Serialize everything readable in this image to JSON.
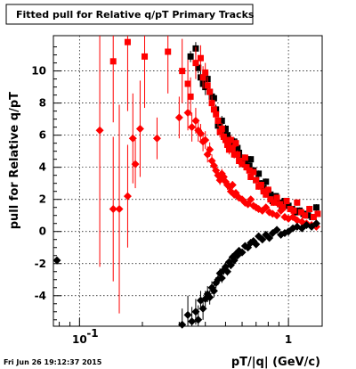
{
  "chart_data": {
    "type": "scatter",
    "title": "Fitted pull for Relative q/pT  Primary Tracks",
    "xlabel": "pT/|q| (GeV/c)",
    "ylabel": "pull for Relative q/pT",
    "x_scale": "log",
    "xlim": [
      0.075,
      1.45
    ],
    "ylim": [
      -5.9,
      12.2
    ],
    "x_ticks": [
      {
        "value": 0.1,
        "label": "10",
        "exp": "-1"
      },
      {
        "value": 1,
        "label": "1",
        "exp": ""
      }
    ],
    "y_ticks": [
      {
        "value": -4,
        "label": "-4"
      },
      {
        "value": -2,
        "label": "-2"
      },
      {
        "value": 0,
        "label": "0"
      },
      {
        "value": 2,
        "label": "2"
      },
      {
        "value": 4,
        "label": "4"
      },
      {
        "value": 6,
        "label": "6"
      },
      {
        "value": 8,
        "label": "8"
      },
      {
        "value": 10,
        "label": "10"
      }
    ],
    "grid": true,
    "series": [
      {
        "color": "#000000",
        "marker": "square",
        "points": [
          [
            0.34,
            10.9
          ],
          [
            0.36,
            11.4
          ],
          [
            0.37,
            10.2
          ],
          [
            0.38,
            9.6
          ],
          [
            0.39,
            9.2
          ],
          [
            0.4,
            9.0
          ],
          [
            0.41,
            9.5
          ],
          [
            0.42,
            8.7
          ],
          [
            0.43,
            8.4
          ],
          [
            0.44,
            8.3
          ],
          [
            0.45,
            7.6
          ],
          [
            0.46,
            6.6
          ],
          [
            0.47,
            6.8
          ],
          [
            0.48,
            6.9
          ],
          [
            0.49,
            6.2
          ],
          [
            0.5,
            6.4
          ],
          [
            0.51,
            6.0
          ],
          [
            0.52,
            5.6
          ],
          [
            0.53,
            5.5
          ],
          [
            0.54,
            5.3
          ],
          [
            0.55,
            5.6
          ],
          [
            0.56,
            4.8
          ],
          [
            0.57,
            5.2
          ],
          [
            0.58,
            4.9
          ],
          [
            0.59,
            4.4
          ],
          [
            0.6,
            4.6
          ],
          [
            0.62,
            4.3
          ],
          [
            0.63,
            4.5
          ],
          [
            0.65,
            4.1
          ],
          [
            0.66,
            4.5
          ],
          [
            0.68,
            3.8
          ],
          [
            0.7,
            3.2
          ],
          [
            0.72,
            3.6
          ],
          [
            0.74,
            3.0
          ],
          [
            0.76,
            2.7
          ],
          [
            0.78,
            3.1
          ],
          [
            0.8,
            2.5
          ],
          [
            0.82,
            2.3
          ],
          [
            0.84,
            1.9
          ],
          [
            0.87,
            2.2
          ],
          [
            0.9,
            1.8
          ],
          [
            0.93,
            1.5
          ],
          [
            0.96,
            1.9
          ],
          [
            1.0,
            1.6
          ],
          [
            1.04,
            1.4
          ],
          [
            1.08,
            1.2
          ],
          [
            1.13,
            1.3
          ],
          [
            1.18,
            1.1
          ],
          [
            1.24,
            1.0
          ],
          [
            1.3,
            0.9
          ],
          [
            1.36,
            1.5
          ]
        ],
        "errors": [
          0.35,
          0.4,
          0.35,
          0.45,
          0.35,
          0.5,
          0.4,
          0.35,
          0.3,
          0.3,
          0.3,
          0.35,
          0.3,
          0.3,
          0.3,
          0.25,
          0.25,
          0.25,
          0.25,
          0.25,
          0.25,
          0.2,
          0.2,
          0.2,
          0.2,
          0.2,
          0.2,
          0.2,
          0.2,
          0.2,
          0.2,
          0.2,
          0.2,
          0.2,
          0.2,
          0.2,
          0.2,
          0.2,
          0.2,
          0.2,
          0.2,
          0.2,
          0.2,
          0.2,
          0.2,
          0.2,
          0.2,
          0.2,
          0.2,
          0.2,
          0.2
        ]
      },
      {
        "color": "#ff0000",
        "marker": "square",
        "points": [
          [
            0.145,
            10.6
          ],
          [
            0.17,
            11.8
          ],
          [
            0.205,
            10.9
          ],
          [
            0.265,
            11.2
          ],
          [
            0.31,
            10.0
          ],
          [
            0.33,
            9.2
          ],
          [
            0.34,
            8.4
          ],
          [
            0.36,
            10.5
          ],
          [
            0.38,
            10.8
          ],
          [
            0.39,
            9.6
          ],
          [
            0.4,
            9.9
          ],
          [
            0.41,
            9.1
          ],
          [
            0.42,
            8.7
          ],
          [
            0.43,
            8.0
          ],
          [
            0.44,
            7.6
          ],
          [
            0.45,
            7.3
          ],
          [
            0.46,
            6.9
          ],
          [
            0.47,
            6.2
          ],
          [
            0.48,
            6.4
          ],
          [
            0.49,
            5.9
          ],
          [
            0.5,
            5.7
          ],
          [
            0.51,
            5.4
          ],
          [
            0.52,
            5.1
          ],
          [
            0.53,
            5.7
          ],
          [
            0.54,
            5.2
          ],
          [
            0.55,
            4.8
          ],
          [
            0.56,
            5.5
          ],
          [
            0.57,
            4.8
          ],
          [
            0.58,
            4.4
          ],
          [
            0.6,
            4.2
          ],
          [
            0.62,
            4.6
          ],
          [
            0.63,
            4.0
          ],
          [
            0.65,
            3.8
          ],
          [
            0.66,
            3.4
          ],
          [
            0.68,
            3.7
          ],
          [
            0.7,
            3.2
          ],
          [
            0.72,
            2.8
          ],
          [
            0.74,
            2.9
          ],
          [
            0.76,
            2.5
          ],
          [
            0.78,
            2.3
          ],
          [
            0.8,
            2.6
          ],
          [
            0.82,
            2.0
          ],
          [
            0.85,
            1.8
          ],
          [
            0.88,
            2.1
          ],
          [
            0.91,
            1.7
          ],
          [
            0.94,
            1.5
          ],
          [
            0.98,
            1.9
          ],
          [
            1.02,
            1.4
          ],
          [
            1.06,
            1.3
          ],
          [
            1.1,
            1.8
          ],
          [
            1.15,
            1.2
          ],
          [
            1.2,
            1.0
          ],
          [
            1.26,
            1.4
          ],
          [
            1.32,
            0.9
          ],
          [
            1.38,
            1.1
          ]
        ],
        "errors": [
          3.8,
          4.3,
          3.2,
          2.6,
          2.0,
          1.5,
          1.2,
          1.0,
          0.8,
          0.7,
          0.6,
          0.55,
          0.5,
          0.45,
          0.45,
          0.4,
          0.4,
          0.35,
          0.35,
          0.3,
          0.3,
          0.3,
          0.3,
          0.3,
          0.25,
          0.25,
          0.25,
          0.25,
          0.25,
          0.2,
          0.2,
          0.2,
          0.2,
          0.2,
          0.2,
          0.2,
          0.2,
          0.2,
          0.2,
          0.2,
          0.2,
          0.2,
          0.2,
          0.2,
          0.2,
          0.2,
          0.2,
          0.2,
          0.2,
          0.2,
          0.2,
          0.2,
          0.2,
          0.2,
          0.2
        ]
      },
      {
        "color": "#ff0000",
        "marker": "diamond",
        "points": [
          [
            0.125,
            6.3
          ],
          [
            0.145,
            1.4
          ],
          [
            0.155,
            1.4
          ],
          [
            0.17,
            2.2
          ],
          [
            0.18,
            5.8
          ],
          [
            0.185,
            4.2
          ],
          [
            0.195,
            6.4
          ],
          [
            0.235,
            5.8
          ],
          [
            0.3,
            7.1
          ],
          [
            0.33,
            7.4
          ],
          [
            0.345,
            6.5
          ],
          [
            0.36,
            6.9
          ],
          [
            0.37,
            6.3
          ],
          [
            0.38,
            6.1
          ],
          [
            0.39,
            5.6
          ],
          [
            0.4,
            5.7
          ],
          [
            0.41,
            4.8
          ],
          [
            0.42,
            5.1
          ],
          [
            0.43,
            4.4
          ],
          [
            0.44,
            4.1
          ],
          [
            0.45,
            3.8
          ],
          [
            0.46,
            3.5
          ],
          [
            0.47,
            3.2
          ],
          [
            0.48,
            3.6
          ],
          [
            0.49,
            3.4
          ],
          [
            0.5,
            3.1
          ],
          [
            0.51,
            2.9
          ],
          [
            0.52,
            2.8
          ],
          [
            0.53,
            2.5
          ],
          [
            0.54,
            2.9
          ],
          [
            0.55,
            2.3
          ],
          [
            0.56,
            2.4
          ],
          [
            0.57,
            2.2
          ],
          [
            0.58,
            2.1
          ],
          [
            0.6,
            2.0
          ],
          [
            0.62,
            1.8
          ],
          [
            0.64,
            1.7
          ],
          [
            0.66,
            2.0
          ],
          [
            0.68,
            1.6
          ],
          [
            0.7,
            1.5
          ],
          [
            0.72,
            1.4
          ],
          [
            0.75,
            1.3
          ],
          [
            0.78,
            1.5
          ],
          [
            0.81,
            1.2
          ],
          [
            0.84,
            1.1
          ],
          [
            0.88,
            1.0
          ],
          [
            0.92,
            1.3
          ],
          [
            0.96,
            0.9
          ],
          [
            1.0,
            0.8
          ],
          [
            1.05,
            0.9
          ],
          [
            1.1,
            0.7
          ],
          [
            1.16,
            0.6
          ],
          [
            1.22,
            0.5
          ],
          [
            1.29,
            0.4
          ],
          [
            1.36,
            0.3
          ]
        ],
        "errors": [
          8.5,
          4.5,
          6.5,
          3.2,
          2.8,
          1.5,
          3.0,
          1.3,
          1.3,
          1.1,
          0.9,
          0.8,
          0.7,
          0.6,
          0.6,
          0.55,
          0.5,
          0.45,
          0.4,
          0.4,
          0.35,
          0.35,
          0.3,
          0.3,
          0.3,
          0.3,
          0.3,
          0.25,
          0.25,
          0.25,
          0.25,
          0.2,
          0.2,
          0.2,
          0.2,
          0.2,
          0.2,
          0.2,
          0.2,
          0.2,
          0.2,
          0.2,
          0.2,
          0.2,
          0.2,
          0.2,
          0.2,
          0.2,
          0.2,
          0.2,
          0.2,
          0.2,
          0.2,
          0.2,
          0.2
        ]
      },
      {
        "color": "#000000",
        "marker": "diamond",
        "points": [
          [
            0.078,
            -1.8
          ],
          [
            0.31,
            -5.8
          ],
          [
            0.33,
            -5.2
          ],
          [
            0.345,
            -5.6
          ],
          [
            0.36,
            -5.0
          ],
          [
            0.37,
            -5.5
          ],
          [
            0.38,
            -4.3
          ],
          [
            0.39,
            -4.8
          ],
          [
            0.4,
            -4.2
          ],
          [
            0.41,
            -3.9
          ],
          [
            0.42,
            -4.1
          ],
          [
            0.43,
            -3.5
          ],
          [
            0.44,
            -3.7
          ],
          [
            0.45,
            -3.2
          ],
          [
            0.46,
            -3.0
          ],
          [
            0.47,
            -2.6
          ],
          [
            0.48,
            -2.9
          ],
          [
            0.49,
            -2.4
          ],
          [
            0.5,
            -2.2
          ],
          [
            0.51,
            -2.5
          ],
          [
            0.52,
            -1.9
          ],
          [
            0.53,
            -2.1
          ],
          [
            0.54,
            -1.6
          ],
          [
            0.55,
            -1.8
          ],
          [
            0.56,
            -1.4
          ],
          [
            0.57,
            -1.5
          ],
          [
            0.58,
            -1.2
          ],
          [
            0.6,
            -1.3
          ],
          [
            0.62,
            -0.9
          ],
          [
            0.64,
            -1.0
          ],
          [
            0.66,
            -0.7
          ],
          [
            0.68,
            -0.6
          ],
          [
            0.7,
            -0.8
          ],
          [
            0.72,
            -0.3
          ],
          [
            0.75,
            -0.5
          ],
          [
            0.78,
            -0.2
          ],
          [
            0.81,
            -0.4
          ],
          [
            0.84,
            -0.1
          ],
          [
            0.88,
            0.1
          ],
          [
            0.92,
            -0.2
          ],
          [
            0.96,
            -0.1
          ],
          [
            1.0,
            0.0
          ],
          [
            1.05,
            0.2
          ],
          [
            1.1,
            0.3
          ],
          [
            1.16,
            0.2
          ],
          [
            1.22,
            0.4
          ],
          [
            1.29,
            0.3
          ],
          [
            1.36,
            0.5
          ]
        ],
        "errors": [
          0.2,
          1.0,
          1.2,
          0.9,
          0.8,
          0.9,
          0.6,
          0.7,
          0.5,
          0.5,
          0.45,
          0.4,
          0.4,
          0.35,
          0.35,
          0.3,
          0.3,
          0.3,
          0.3,
          0.25,
          0.25,
          0.25,
          0.25,
          0.25,
          0.2,
          0.2,
          0.2,
          0.2,
          0.2,
          0.2,
          0.2,
          0.2,
          0.2,
          0.2,
          0.2,
          0.2,
          0.2,
          0.2,
          0.2,
          0.2,
          0.2,
          0.2,
          0.2,
          0.2,
          0.2,
          0.2,
          0.2,
          0.2
        ]
      }
    ]
  },
  "footer": {
    "timestamp": "Fri Jun 26 19:12:37 2015"
  }
}
